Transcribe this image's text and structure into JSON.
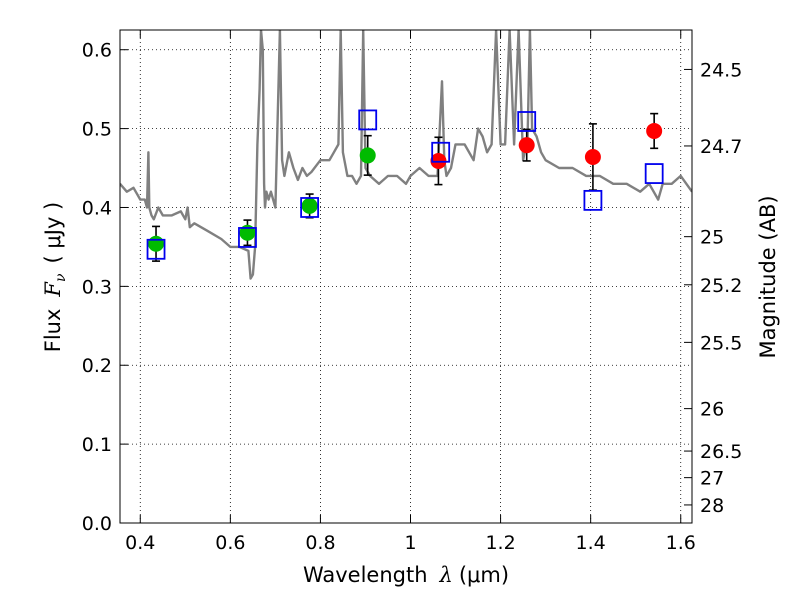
{
  "chart_data": {
    "type": "scatter",
    "xlabel": "Wavelength",
    "xlabel_symbol": "λ",
    "xlabel_unit": "(μm)",
    "ylabel": "Flux",
    "ylabel_symbol": "F",
    "ylabel_subscript": "ν",
    "ylabel_unit": "( μJy )",
    "y2label": "Magnitude (AB)",
    "xlim": [
      0.355,
      1.625
    ],
    "ylim": [
      0.0,
      0.625
    ],
    "grid": true,
    "grid_style": "dotted",
    "x_ticks": [
      0.4,
      0.6,
      0.8,
      1.0,
      1.2,
      1.4,
      1.6
    ],
    "x_tick_labels": [
      "0.4",
      "0.6",
      "0.8",
      "1",
      "1.2",
      "1.4",
      "1.6"
    ],
    "y_ticks": [
      0.0,
      0.1,
      0.2,
      0.3,
      0.4,
      0.5,
      0.6
    ],
    "y_tick_labels": [
      "0.0",
      "0.1",
      "0.2",
      "0.3",
      "0.4",
      "0.5",
      "0.6"
    ],
    "y2_ticks": [
      {
        "label": "24.5",
        "flux": 0.575
      },
      {
        "label": "24.7",
        "flux": 0.478
      },
      {
        "label": "25",
        "flux": 0.363
      },
      {
        "label": "25.2",
        "flux": 0.302
      },
      {
        "label": "25.5",
        "flux": 0.229
      },
      {
        "label": "26",
        "flux": 0.145
      },
      {
        "label": "26.5",
        "flux": 0.0912
      },
      {
        "label": "27",
        "flux": 0.0575
      },
      {
        "label": "28",
        "flux": 0.0229
      }
    ],
    "series": [
      {
        "marker": "circle",
        "color": "#00bb00",
        "x": [
          0.435,
          0.638,
          0.776,
          0.905
        ],
        "y": [
          0.354,
          0.368,
          0.402,
          0.466
        ],
        "err": [
          0.022,
          0.016,
          0.015,
          0.025
        ]
      },
      {
        "marker": "circle",
        "color": "#ff0000",
        "x": [
          1.062,
          1.258,
          1.405,
          1.541
        ],
        "y": [
          0.459,
          0.479,
          0.464,
          0.497
        ],
        "err": [
          0.03,
          0.02,
          0.042,
          0.022
        ]
      },
      {
        "marker": "open-square",
        "color": "#0000ee",
        "x": [
          0.435,
          0.638,
          0.776,
          0.905,
          1.067,
          1.258,
          1.405,
          1.541
        ],
        "y": [
          0.347,
          0.362,
          0.4,
          0.511,
          0.47,
          0.509,
          0.409,
          0.443
        ]
      },
      {
        "type": "line",
        "color": "#808080",
        "x": [
          0.355,
          0.37,
          0.385,
          0.4,
          0.41,
          0.415,
          0.418,
          0.42,
          0.425,
          0.43,
          0.44,
          0.45,
          0.47,
          0.49,
          0.5,
          0.505,
          0.51,
          0.52,
          0.55,
          0.58,
          0.6,
          0.62,
          0.64,
          0.645,
          0.65,
          0.655,
          0.66,
          0.665,
          0.668,
          0.672,
          0.675,
          0.677,
          0.68,
          0.685,
          0.69,
          0.7,
          0.71,
          0.715,
          0.72,
          0.73,
          0.74,
          0.75,
          0.76,
          0.77,
          0.78,
          0.8,
          0.82,
          0.83,
          0.84,
          0.845,
          0.85,
          0.86,
          0.87,
          0.88,
          0.89,
          0.895,
          0.9,
          0.91,
          0.93,
          0.95,
          0.97,
          0.99,
          1.0,
          1.02,
          1.04,
          1.06,
          1.07,
          1.075,
          1.08,
          1.09,
          1.1,
          1.12,
          1.14,
          1.15,
          1.16,
          1.17,
          1.18,
          1.19,
          1.2,
          1.21,
          1.22,
          1.23,
          1.24,
          1.25,
          1.26,
          1.265,
          1.27,
          1.28,
          1.29,
          1.3,
          1.33,
          1.36,
          1.39,
          1.42,
          1.45,
          1.48,
          1.51,
          1.53,
          1.55,
          1.56,
          1.58,
          1.6,
          1.625
        ],
        "y": [
          0.43,
          0.42,
          0.425,
          0.41,
          0.41,
          0.4,
          0.47,
          0.4,
          0.39,
          0.385,
          0.4,
          0.39,
          0.39,
          0.395,
          0.385,
          0.4,
          0.375,
          0.38,
          0.37,
          0.36,
          0.35,
          0.35,
          0.345,
          0.31,
          0.315,
          0.35,
          0.48,
          0.55,
          0.625,
          0.6,
          0.43,
          0.4,
          0.42,
          0.41,
          0.42,
          0.4,
          0.625,
          0.46,
          0.44,
          0.47,
          0.45,
          0.435,
          0.45,
          0.44,
          0.445,
          0.46,
          0.46,
          0.47,
          0.48,
          0.625,
          0.47,
          0.44,
          0.44,
          0.43,
          0.44,
          0.625,
          0.45,
          0.44,
          0.43,
          0.44,
          0.44,
          0.43,
          0.44,
          0.45,
          0.44,
          0.44,
          0.56,
          0.46,
          0.44,
          0.45,
          0.48,
          0.48,
          0.46,
          0.5,
          0.49,
          0.47,
          0.48,
          0.625,
          0.48,
          0.48,
          0.625,
          0.48,
          0.625,
          0.46,
          0.49,
          0.625,
          0.5,
          0.49,
          0.47,
          0.46,
          0.45,
          0.45,
          0.44,
          0.44,
          0.43,
          0.43,
          0.42,
          0.43,
          0.41,
          0.43,
          0.43,
          0.44,
          0.42
        ]
      }
    ]
  }
}
